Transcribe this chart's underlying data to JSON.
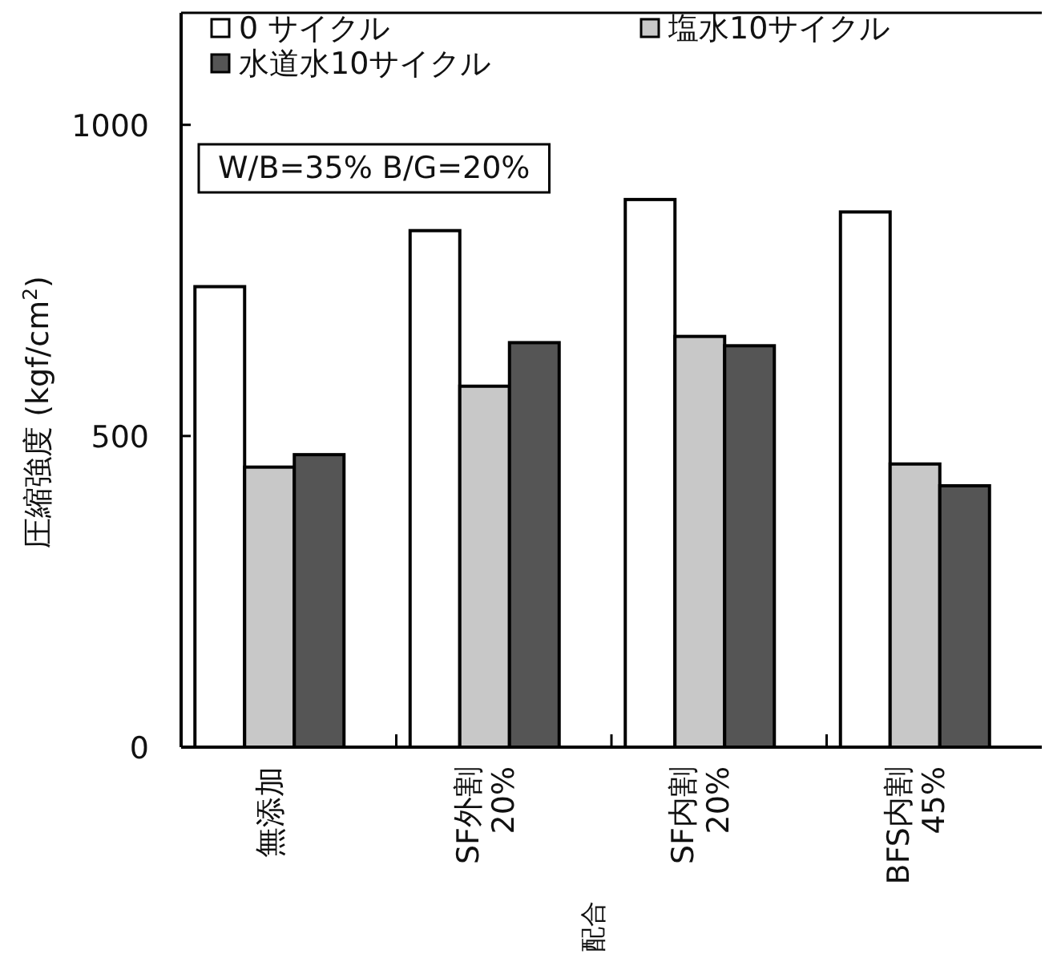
{
  "chart_data": {
    "type": "bar",
    "ylabel": "圧縮強度 (kgf/cm$^{2}$)",
    "categories": [
      "無添加",
      "SF外割\n20%",
      "SF内割\n20%",
      "BFS内割\n45%"
    ],
    "series": [
      {
        "name": "0 サイクル",
        "color": "#ffffff",
        "values": [
          740,
          830,
          880,
          860
        ]
      },
      {
        "name": "塩水10サイクル",
        "color": "#c8c8c8",
        "values": [
          450,
          580,
          660,
          455
        ]
      },
      {
        "name": "水道水10サイクル",
        "color": "#555555",
        "values": [
          470,
          650,
          645,
          420
        ]
      }
    ],
    "ylim": [
      0,
      1180
    ],
    "yticks": [
      0,
      500,
      1000
    ],
    "annotations": [
      "W/B=35%  B/G=20%",
      "配合"
    ],
    "legend": "top",
    "grid": false
  }
}
